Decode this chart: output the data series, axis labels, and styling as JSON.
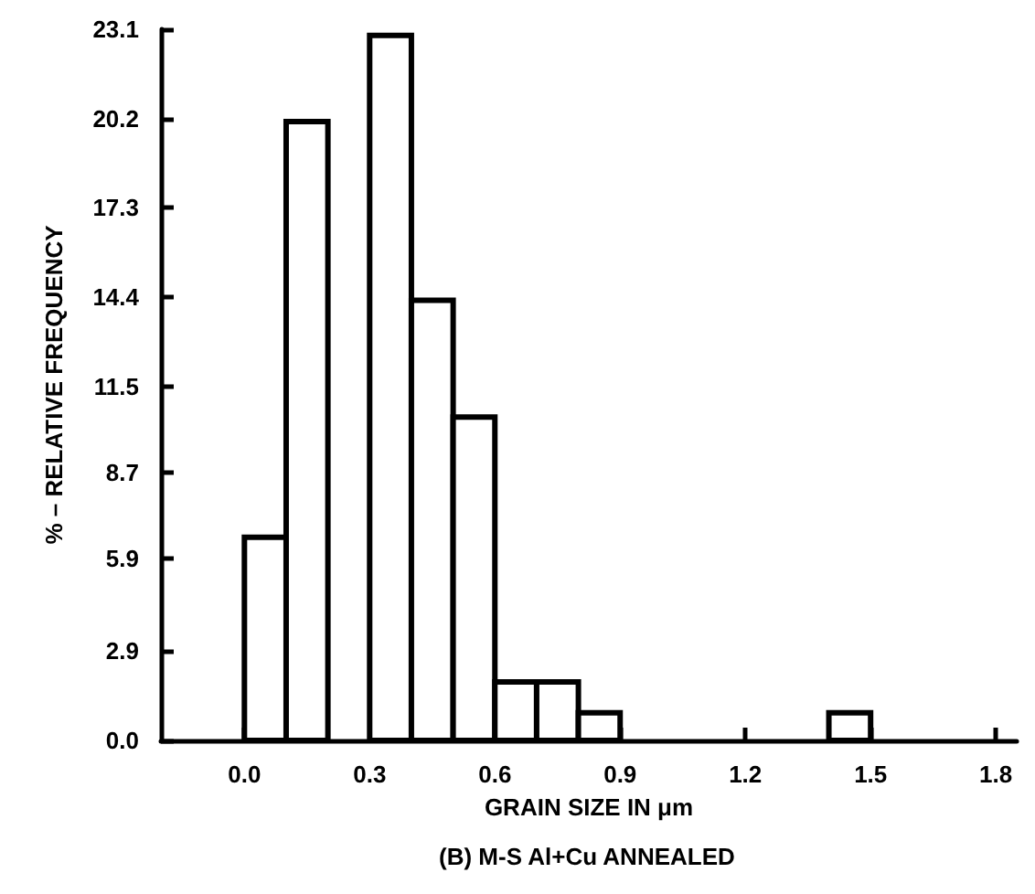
{
  "chart_data": {
    "type": "histogram",
    "xlabel": "GRAIN SIZE IN μm",
    "ylabel": "% – RELATIVE FREQUENCY",
    "annotations": [
      "(B) M-S Al+Cu ANNEALED"
    ],
    "bins": [
      0.0,
      0.1,
      0.2,
      0.3,
      0.4,
      0.5,
      0.6,
      0.7,
      0.8,
      0.9,
      1.0,
      1.1,
      1.2,
      1.3,
      1.4,
      1.5
    ],
    "values": [
      6.6,
      20.1,
      0,
      22.9,
      14.3,
      10.5,
      1.9,
      1.9,
      0.9,
      0,
      0,
      0,
      0,
      0,
      0.9
    ],
    "color": "#ffffff",
    "xlim": [
      -0.2,
      1.85
    ],
    "xticks": [
      {
        "value": 0,
        "label": "0.0"
      },
      0.3,
      0.6,
      0.9,
      1.2,
      1.5,
      1.8
    ],
    "ylim": [
      0,
      23.1
    ],
    "yticks": [
      {
        "value": 0,
        "label": "0.0"
      },
      2.9,
      5.9,
      8.7,
      11.5,
      14.4,
      17.3,
      20.2,
      23.1
    ],
    "grid": false
  }
}
